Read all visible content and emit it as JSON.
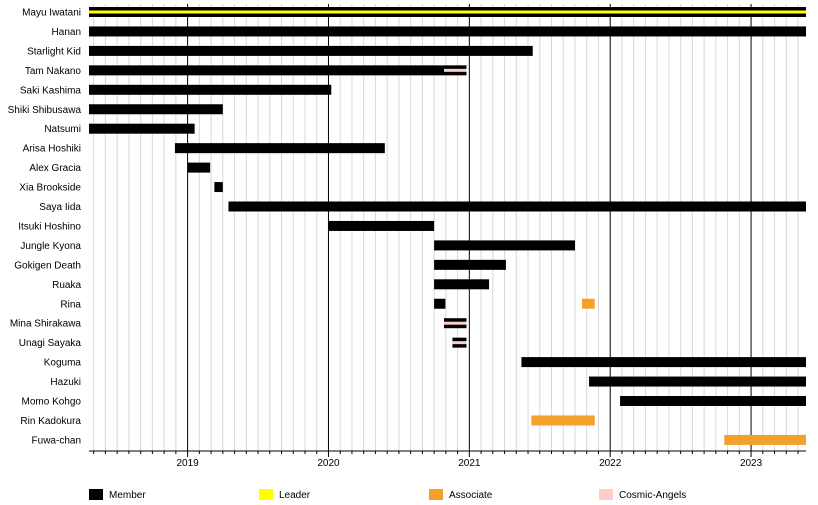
{
  "chart_data": {
    "type": "timeline",
    "title": "",
    "xlabel": "",
    "ylabel": "",
    "x_range": [
      2018.3,
      2023.39
    ],
    "grid": true,
    "legend_position": "bottom-left",
    "years": [
      "2019",
      "2020",
      "2021",
      "2022",
      "2023"
    ],
    "categories": {
      "member": {
        "label": "Member",
        "color": "#000000"
      },
      "leader": {
        "label": "Leader",
        "color": "#FFFF00"
      },
      "associate": {
        "label": "Associate",
        "color": "#F5A02A"
      },
      "cosmic": {
        "label": "Cosmic-Angels",
        "color": "#FFCCCC"
      }
    },
    "legend_order": [
      "member",
      "leader",
      "associate",
      "cosmic"
    ],
    "rows": [
      {
        "name": "Mayu Iwatani",
        "segments": [
          {
            "type": "member",
            "start": 2018.3,
            "end": 2023.39
          },
          {
            "type": "leader",
            "start": 2018.3,
            "end": 2023.39,
            "overlay": true
          }
        ]
      },
      {
        "name": "Hanan",
        "segments": [
          {
            "type": "member",
            "start": 2018.3,
            "end": 2023.39
          }
        ]
      },
      {
        "name": "Starlight Kid",
        "segments": [
          {
            "type": "member",
            "start": 2018.3,
            "end": 2021.45
          }
        ]
      },
      {
        "name": "Tam Nakano",
        "segments": [
          {
            "type": "member",
            "start": 2018.3,
            "end": 2020.98
          },
          {
            "type": "cosmic",
            "start": 2020.82,
            "end": 2020.98,
            "overlay": true
          }
        ]
      },
      {
        "name": "Saki Kashima",
        "segments": [
          {
            "type": "member",
            "start": 2018.3,
            "end": 2020.02
          }
        ]
      },
      {
        "name": "Shiki Shibusawa",
        "segments": [
          {
            "type": "member",
            "start": 2018.3,
            "end": 2019.25
          }
        ]
      },
      {
        "name": "Natsumi",
        "segments": [
          {
            "type": "member",
            "start": 2018.3,
            "end": 2019.05
          }
        ]
      },
      {
        "name": "Arisa Hoshiki",
        "segments": [
          {
            "type": "member",
            "start": 2018.91,
            "end": 2020.4
          }
        ]
      },
      {
        "name": "Alex Gracia",
        "segments": [
          {
            "type": "member",
            "start": 2019.0,
            "end": 2019.16
          }
        ]
      },
      {
        "name": "Xia Brookside",
        "segments": [
          {
            "type": "member",
            "start": 2019.19,
            "end": 2019.25
          }
        ]
      },
      {
        "name": "Saya Iida",
        "segments": [
          {
            "type": "member",
            "start": 2019.29,
            "end": 2023.39
          }
        ]
      },
      {
        "name": "Itsuki Hoshino",
        "segments": [
          {
            "type": "member",
            "start": 2020.0,
            "end": 2020.75
          }
        ]
      },
      {
        "name": "Jungle Kyona",
        "segments": [
          {
            "type": "member",
            "start": 2020.75,
            "end": 2021.75
          }
        ]
      },
      {
        "name": "Gokigen Death",
        "segments": [
          {
            "type": "member",
            "start": 2020.75,
            "end": 2021.26
          }
        ]
      },
      {
        "name": "Ruaka",
        "segments": [
          {
            "type": "member",
            "start": 2020.75,
            "end": 2021.14
          }
        ]
      },
      {
        "name": "Rina",
        "segments": [
          {
            "type": "member",
            "start": 2020.75,
            "end": 2020.83
          },
          {
            "type": "associate",
            "start": 2021.8,
            "end": 2021.89
          }
        ]
      },
      {
        "name": "Mina Shirakawa",
        "segments": [
          {
            "type": "member",
            "start": 2020.82,
            "end": 2020.98
          },
          {
            "type": "cosmic",
            "start": 2020.82,
            "end": 2020.98,
            "overlay": true
          }
        ]
      },
      {
        "name": "Unagi Sayaka",
        "segments": [
          {
            "type": "member",
            "start": 2020.88,
            "end": 2020.98
          },
          {
            "type": "cosmic",
            "start": 2020.88,
            "end": 2020.98,
            "overlay": true
          }
        ]
      },
      {
        "name": "Koguma",
        "segments": [
          {
            "type": "member",
            "start": 2021.37,
            "end": 2023.39
          }
        ]
      },
      {
        "name": "Hazuki",
        "segments": [
          {
            "type": "member",
            "start": 2021.85,
            "end": 2023.39
          }
        ]
      },
      {
        "name": "Momo Kohgo",
        "segments": [
          {
            "type": "member",
            "start": 2022.07,
            "end": 2023.39
          }
        ]
      },
      {
        "name": "Rin Kadokura",
        "segments": [
          {
            "type": "associate",
            "start": 2021.44,
            "end": 2021.89
          }
        ]
      },
      {
        "name": "Fuwa-chan",
        "segments": [
          {
            "type": "associate",
            "start": 2022.81,
            "end": 2023.39
          }
        ]
      }
    ]
  }
}
